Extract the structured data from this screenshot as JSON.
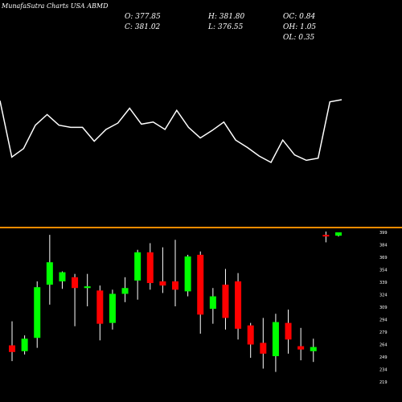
{
  "watermark": "MunafaSutra Charts USA ABMD",
  "ohlc": {
    "o": "O: 377.85",
    "h": "H: 381.80",
    "oc": "OC: 0.84",
    "c": "C: 381.02",
    "l": "L: 376.55",
    "oh": "OH: 1.05",
    "ol": "OL: 0.35"
  },
  "colors": {
    "background": "#000000",
    "up": "#00ff00",
    "down": "#ff0000",
    "wick": "#ffffff",
    "line": "#ffffff",
    "separator": "#ff8c00"
  },
  "chart_data": [
    {
      "type": "line",
      "title": "",
      "grid": false,
      "series": [
        {
          "values": [
            125,
            178,
            170,
            148,
            138,
            148,
            150,
            150,
            163,
            152,
            146,
            132,
            147,
            145,
            152,
            134,
            150,
            160,
            153,
            145,
            162,
            169,
            177,
            183,
            162,
            176,
            181,
            179,
            126,
            124
          ]
        }
      ]
    },
    {
      "type": "candlestick",
      "title": "",
      "grid": false,
      "yticks": [
        219,
        234,
        249,
        264,
        279,
        294,
        309,
        324,
        339,
        354,
        369,
        384,
        399
      ],
      "candles": [
        {
          "open": 263,
          "high": 292,
          "low": 244,
          "close": 255
        },
        {
          "open": 256,
          "high": 275,
          "low": 252,
          "close": 271
        },
        {
          "open": 272,
          "high": 340,
          "low": 260,
          "close": 333
        },
        {
          "open": 336,
          "high": 396,
          "low": 312,
          "close": 363
        },
        {
          "open": 340,
          "high": 352,
          "low": 331,
          "close": 351
        },
        {
          "open": 345,
          "high": 349,
          "low": 286,
          "close": 332
        },
        {
          "open": 332,
          "high": 349,
          "low": 310,
          "close": 334
        },
        {
          "open": 329,
          "high": 335,
          "low": 269,
          "close": 289
        },
        {
          "open": 290,
          "high": 330,
          "low": 282,
          "close": 325
        },
        {
          "open": 325,
          "high": 345,
          "low": 315,
          "close": 332
        },
        {
          "open": 341,
          "high": 378,
          "low": 318,
          "close": 375
        },
        {
          "open": 375,
          "high": 386,
          "low": 330,
          "close": 338
        },
        {
          "open": 340,
          "high": 381,
          "low": 326,
          "close": 335
        },
        {
          "open": 340,
          "high": 390,
          "low": 310,
          "close": 330
        },
        {
          "open": 328,
          "high": 372,
          "low": 322,
          "close": 370
        },
        {
          "open": 372,
          "high": 376,
          "low": 277,
          "close": 300
        },
        {
          "open": 307,
          "high": 332,
          "low": 289,
          "close": 322
        },
        {
          "open": 336,
          "high": 355,
          "low": 282,
          "close": 296
        },
        {
          "open": 340,
          "high": 350,
          "low": 270,
          "close": 283
        },
        {
          "open": 287,
          "high": 290,
          "low": 248,
          "close": 264
        },
        {
          "open": 266,
          "high": 296,
          "low": 235,
          "close": 253
        },
        {
          "open": 250,
          "high": 301,
          "low": 231,
          "close": 291
        },
        {
          "open": 290,
          "high": 306,
          "low": 253,
          "close": 270
        },
        {
          "open": 262,
          "high": 284,
          "low": 245,
          "close": 258
        },
        {
          "open": 256,
          "high": 271,
          "low": 243,
          "close": 261
        },
        {
          "open": 396,
          "high": 400,
          "low": 387,
          "close": 394
        },
        {
          "open": 395,
          "high": 399,
          "low": 394,
          "close": 399
        }
      ]
    }
  ]
}
